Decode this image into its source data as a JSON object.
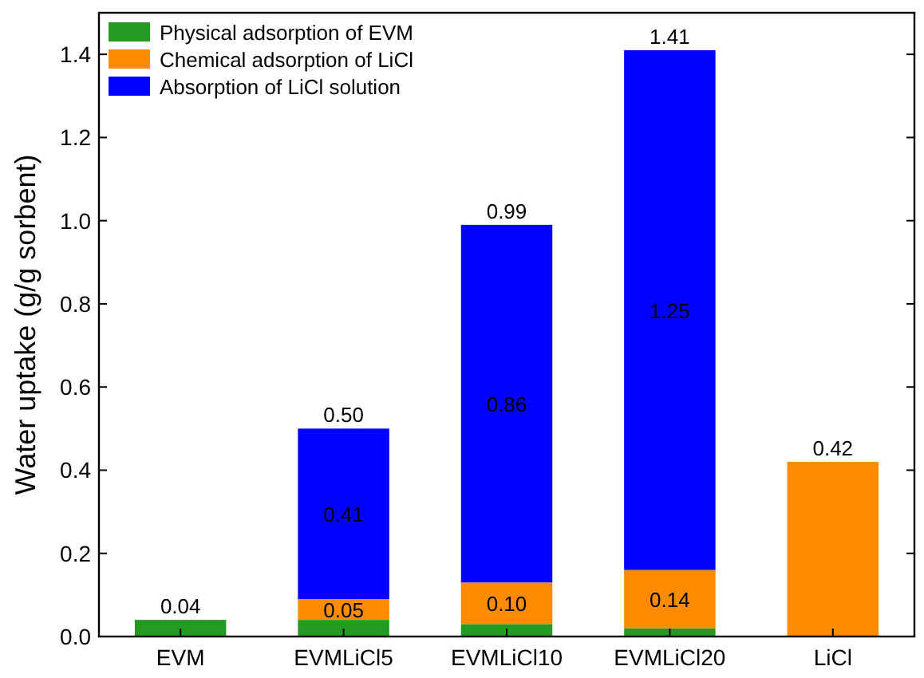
{
  "chart_data": {
    "type": "bar",
    "stacked": true,
    "ylabel": "Water uptake (g/g sorbent)",
    "categories": [
      "EVM",
      "EVMLiCl5",
      "EVMLiCl10",
      "EVMLiCl20",
      "LiCl"
    ],
    "series": [
      {
        "name": "Physical adsorption of EVM",
        "color": "#239b23",
        "values": [
          0.04,
          0.04,
          0.03,
          0.02,
          0
        ],
        "value_labels": [
          "0.04",
          null,
          null,
          null,
          null
        ]
      },
      {
        "name": "Chemical adsorption of LiCl",
        "color": "#ff8c00",
        "values": [
          0,
          0.05,
          0.1,
          0.14,
          0.42
        ],
        "value_labels": [
          null,
          "0.05",
          "0.10",
          "0.14",
          "0.42"
        ]
      },
      {
        "name": "Absorption of LiCl solution",
        "color": "#0000ff",
        "values": [
          0,
          0.41,
          0.86,
          1.25,
          0
        ],
        "value_labels": [
          null,
          "0.41",
          "0.86",
          "1.25",
          null
        ]
      }
    ],
    "totals": [
      null,
      "0.50",
      "0.99",
      "1.41",
      null
    ],
    "ylim": [
      0,
      1.5
    ],
    "yticks": [
      {
        "value": 0,
        "label": "0.0"
      },
      {
        "value": 0.2,
        "label": "0.2"
      },
      {
        "value": 0.4,
        "label": "0.4"
      },
      {
        "value": 0.6,
        "label": "0.6"
      },
      {
        "value": 0.8,
        "label": "0.8"
      },
      {
        "value": 1,
        "label": "1.0"
      },
      {
        "value": 1.2,
        "label": "1.2"
      },
      {
        "value": 1.4,
        "label": "1.4"
      }
    ],
    "legend": "top left",
    "grid": false
  }
}
